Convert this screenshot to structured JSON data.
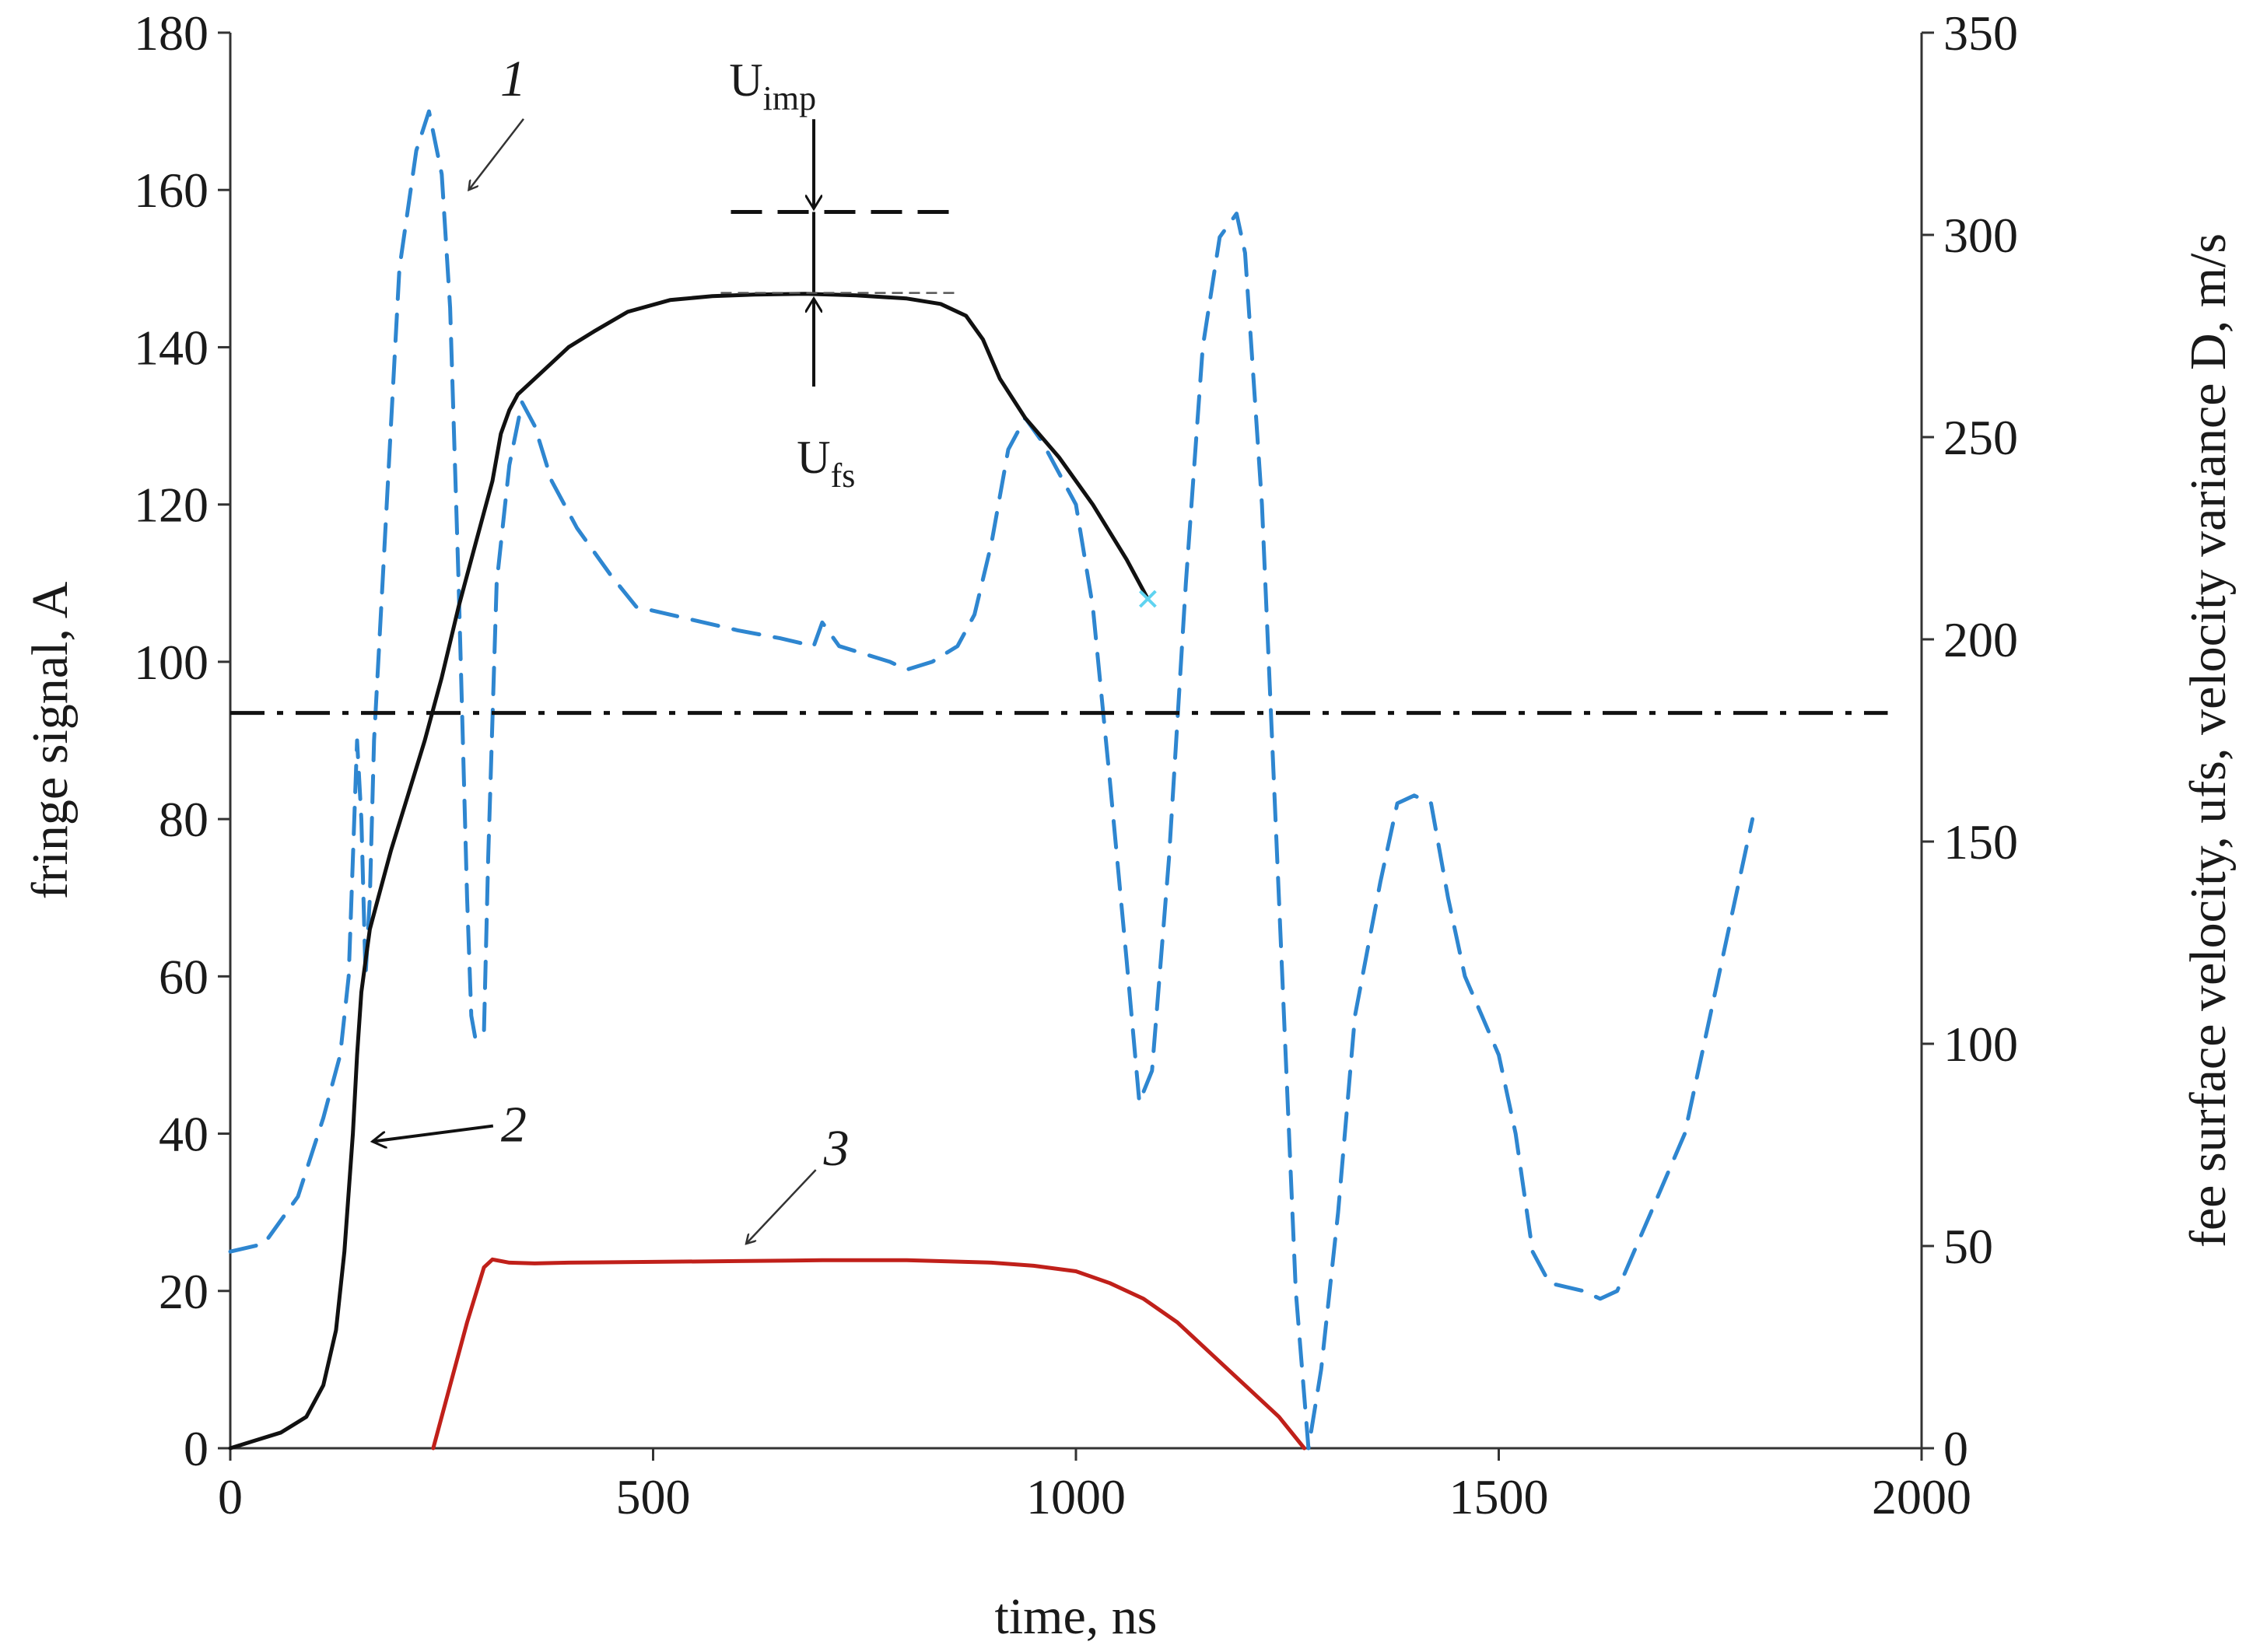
{
  "chart_data": {
    "type": "line",
    "xlabel": "time, ns",
    "ylabel_left": "fringe signal, A",
    "ylabel_right": "fee surface velocity, ufs, velocity variance D, m/s",
    "xlim": [
      0,
      2000
    ],
    "ylim_left": [
      0,
      180
    ],
    "ylim_right": [
      0,
      350
    ],
    "xticks": [
      "0",
      "500",
      "1000",
      "1500",
      "2000"
    ],
    "yticks_left": [
      "0",
      "20",
      "40",
      "60",
      "80",
      "100",
      "120",
      "140",
      "160",
      "180"
    ],
    "yticks_right": [
      "0",
      "50",
      "100",
      "150",
      "200",
      "250",
      "300",
      "350"
    ],
    "grid": false,
    "series": [
      {
        "id": "1",
        "axis": "left",
        "style": "dashed",
        "color": "#2e86d0",
        "x": [
          0,
          40,
          80,
          110,
          130,
          140,
          145,
          150,
          155,
          160,
          165,
          170,
          180,
          190,
          200,
          220,
          235,
          250,
          260,
          270,
          280,
          285,
          290,
          300,
          305,
          315,
          330,
          345,
          360,
          380,
          410,
          450,
          480,
          520,
          560,
          600,
          650,
          690,
          700,
          720,
          780,
          800,
          830,
          860,
          880,
          900,
          920,
          940,
          960,
          1000,
          1020,
          1040,
          1060,
          1075,
          1090,
          1110,
          1130,
          1150,
          1170,
          1190,
          1200,
          1220,
          1240,
          1260,
          1275,
          1290,
          1310,
          1330,
          1360,
          1380,
          1400,
          1420,
          1440,
          1460,
          1480,
          1500,
          1520,
          1540,
          1560,
          1600,
          1620,
          1640,
          1660,
          1680,
          1700,
          1720,
          1760,
          1800
        ],
        "y": [
          25,
          26,
          32,
          42,
          50,
          60,
          75,
          90,
          80,
          60,
          70,
          90,
          110,
          130,
          150,
          165,
          170,
          162,
          145,
          110,
          70,
          55,
          52,
          53,
          75,
          110,
          125,
          133,
          130,
          123,
          117,
          111,
          107,
          106,
          105,
          104,
          103,
          102,
          105,
          102,
          100,
          99,
          100,
          102,
          106,
          115,
          127,
          131,
          128,
          120,
          107,
          85,
          62,
          44,
          48,
          75,
          110,
          140,
          154,
          157,
          152,
          120,
          70,
          20,
          0,
          10,
          30,
          55,
          72,
          82,
          83,
          82,
          70,
          60,
          55,
          50,
          40,
          25,
          21,
          20,
          19,
          20,
          25,
          30,
          35,
          40,
          60,
          80
        ]
      },
      {
        "id": "2",
        "axis": "left",
        "style": "solid",
        "color": "#111111",
        "x": [
          0,
          30,
          60,
          90,
          110,
          125,
          135,
          145,
          150,
          155,
          160,
          165,
          175,
          190,
          210,
          230,
          250,
          270,
          290,
          310,
          320,
          330,
          340,
          360,
          380,
          400,
          430,
          470,
          520,
          570,
          620,
          680,
          740,
          800,
          840,
          870,
          890,
          910,
          940,
          980,
          1020,
          1060,
          1085
        ],
        "y": [
          0,
          1,
          2,
          4,
          8,
          15,
          25,
          40,
          50,
          58,
          62,
          66,
          70,
          76,
          83,
          90,
          98,
          107,
          115,
          123,
          129,
          132,
          134,
          136,
          138,
          140,
          142,
          144.5,
          146,
          146.5,
          146.7,
          146.8,
          146.6,
          146.2,
          145.5,
          144,
          141,
          136,
          131,
          126,
          120,
          113,
          108
        ]
      },
      {
        "id": "3",
        "axis": "left",
        "style": "solid",
        "color": "#c0201a",
        "x": [
          240,
          260,
          280,
          300,
          310,
          330,
          360,
          400,
          500,
          600,
          700,
          800,
          900,
          950,
          1000,
          1040,
          1080,
          1120,
          1160,
          1200,
          1240,
          1270
        ],
        "y": [
          0,
          8,
          16,
          23,
          24,
          23.6,
          23.5,
          23.6,
          23.7,
          23.8,
          23.9,
          23.9,
          23.6,
          23.2,
          22.5,
          21,
          19,
          16,
          12,
          8,
          4,
          0
        ]
      },
      {
        "id": "threshold",
        "axis": "left",
        "style": "dashdot",
        "color": "#111111",
        "x": [
          0,
          1960
        ],
        "y": [
          93.5,
          93.5
        ]
      }
    ],
    "annotations": [
      {
        "text": "1",
        "x": 310,
        "y": 172
      },
      {
        "text": "2",
        "x": 320,
        "y": 40
      },
      {
        "text": "3",
        "x": 720,
        "y": 35
      },
      {
        "text": "U",
        "sub": "imp",
        "x": 690,
        "y": 174
      },
      {
        "text": "U",
        "sub": "fs",
        "x": 690,
        "y": 128
      }
    ]
  }
}
